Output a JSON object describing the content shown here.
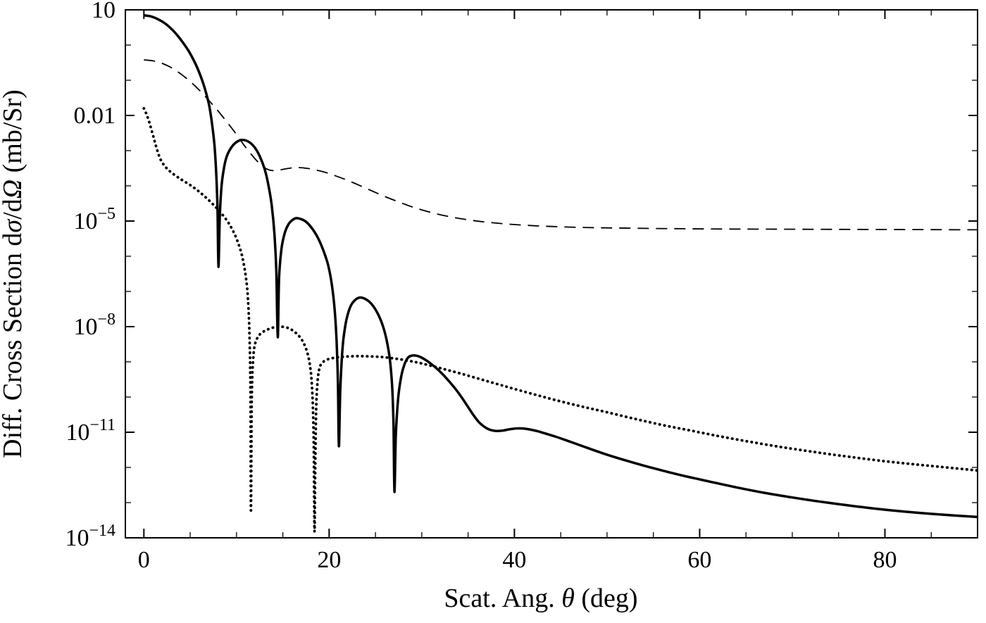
{
  "figure": {
    "background": "#ffffff",
    "frame_color": "#000000"
  },
  "chart_data": {
    "type": "line",
    "title": "",
    "xlabel": "Scat. Ang. θ (deg)",
    "ylabel": "Diff. Cross Section dσ/dΩ (mb/Sr)",
    "x_range": [
      -2,
      90
    ],
    "y_scale": "log10",
    "y_range_exp": [
      -14,
      1
    ],
    "grid": false,
    "legend": "none",
    "x_ticks": {
      "major": [
        0,
        20,
        40,
        60,
        80
      ],
      "labels": [
        "0",
        "20",
        "40",
        "60",
        "80"
      ],
      "minor": [
        5,
        10,
        15,
        25,
        30,
        35,
        45,
        50,
        55,
        65,
        70,
        75,
        85
      ]
    },
    "y_ticks": {
      "major_exp": [
        1,
        -2,
        -5,
        -8,
        -11,
        -14
      ],
      "labels": [
        "10",
        "0.01",
        "10^−5",
        "10^−8",
        "10^−11",
        "10^−14"
      ],
      "minor_exp": [
        0,
        -1,
        -3,
        -4,
        -6,
        -7,
        -9,
        -10,
        -12,
        -13
      ]
    },
    "series": [
      {
        "name": "solid-curve",
        "line_style": "solid",
        "color": "#000000",
        "points": [
          [
            0,
            7
          ],
          [
            0.8,
            6.5
          ],
          [
            1.6,
            5.3
          ],
          [
            2.4,
            3.9
          ],
          [
            3.2,
            2.5
          ],
          [
            4,
            1.4
          ],
          [
            4.8,
            0.7
          ],
          [
            5.5,
            0.32
          ],
          [
            6,
            0.16
          ],
          [
            6.5,
            0.068
          ],
          [
            7,
            0.022
          ],
          [
            7.3,
            0.0075
          ],
          [
            7.6,
            0.0016
          ],
          [
            7.8,
            0.00025
          ],
          [
            7.95,
            2e-05
          ],
          [
            8.05,
            5e-07
          ],
          [
            8.2,
            1.5e-05
          ],
          [
            8.4,
            0.00011
          ],
          [
            8.7,
            0.00038
          ],
          [
            9,
            0.00075
          ],
          [
            9.5,
            0.0013
          ],
          [
            10,
            0.00175
          ],
          [
            10.5,
            0.002
          ],
          [
            11,
            0.00195
          ],
          [
            11.5,
            0.00165
          ],
          [
            12,
            0.0012
          ],
          [
            12.5,
            0.0007
          ],
          [
            13,
            0.00032
          ],
          [
            13.4,
            0.00012
          ],
          [
            13.8,
            2.8e-05
          ],
          [
            14.1,
            4e-06
          ],
          [
            14.3,
            3.5e-07
          ],
          [
            14.45,
            5e-09
          ],
          [
            14.6,
            2.5e-07
          ],
          [
            14.85,
            1.6e-06
          ],
          [
            15.2,
            4.5e-06
          ],
          [
            15.6,
            8e-06
          ],
          [
            16,
            1.05e-05
          ],
          [
            16.4,
            1.2e-05
          ],
          [
            16.9,
            1.15e-05
          ],
          [
            17.4,
            1e-05
          ],
          [
            17.9,
            7.5e-06
          ],
          [
            18.4,
            5e-06
          ],
          [
            18.9,
            2.9e-06
          ],
          [
            19.4,
            1.4e-06
          ],
          [
            19.9,
            5.5e-07
          ],
          [
            20.3,
            1.5e-07
          ],
          [
            20.6,
            3e-08
          ],
          [
            20.8,
            4e-09
          ],
          [
            20.95,
            2.5e-10
          ],
          [
            21.05,
            4e-12
          ],
          [
            21.2,
            1.5e-10
          ],
          [
            21.45,
            2.5e-09
          ],
          [
            21.7,
            9e-09
          ],
          [
            22,
            2.2e-08
          ],
          [
            22.4,
            4.2e-08
          ],
          [
            22.9,
            6e-08
          ],
          [
            23.3,
            6.7e-08
          ],
          [
            23.8,
            6.3e-08
          ],
          [
            24.3,
            5.2e-08
          ],
          [
            24.8,
            3.7e-08
          ],
          [
            25.3,
            2.2e-08
          ],
          [
            25.8,
            1.05e-08
          ],
          [
            26.2,
            4.2e-09
          ],
          [
            26.55,
            1.2e-09
          ],
          [
            26.8,
            2e-10
          ],
          [
            26.95,
            1.5e-11
          ],
          [
            27.05,
            2e-13
          ],
          [
            27.2,
            8e-12
          ],
          [
            27.45,
            9e-11
          ],
          [
            27.75,
            3.5e-10
          ],
          [
            28.1,
            8e-10
          ],
          [
            28.5,
            1.3e-09
          ],
          [
            28.9,
            1.5e-09
          ],
          [
            29.4,
            1.5e-09
          ],
          [
            29.9,
            1.35e-09
          ],
          [
            30.6,
            1.05e-09
          ],
          [
            31.4,
            7.2e-10
          ],
          [
            32.2,
            4.6e-10
          ],
          [
            33,
            2.7e-10
          ],
          [
            33.8,
            1.5e-10
          ],
          [
            34.6,
            7.5e-11
          ],
          [
            35.4,
            3.6e-11
          ],
          [
            36.2,
            1.9e-11
          ],
          [
            37,
            1.3e-11
          ],
          [
            37.8,
            1.1e-11
          ],
          [
            38.6,
            1.1e-11
          ],
          [
            39.4,
            1.2e-11
          ],
          [
            40.2,
            1.28e-11
          ],
          [
            41,
            1.27e-11
          ],
          [
            42,
            1.15e-11
          ],
          [
            43,
            9.8e-12
          ],
          [
            44.5,
            7.4e-12
          ],
          [
            46,
            5.4e-12
          ],
          [
            48,
            3.5e-12
          ],
          [
            50,
            2.3e-12
          ],
          [
            52.5,
            1.45e-12
          ],
          [
            55,
            9.5e-13
          ],
          [
            58,
            6e-13
          ],
          [
            61,
            4e-13
          ],
          [
            64,
            2.7e-13
          ],
          [
            67,
            1.9e-13
          ],
          [
            70,
            1.4e-13
          ],
          [
            74,
            9.8e-14
          ],
          [
            78,
            7.2e-14
          ],
          [
            82,
            5.6e-14
          ],
          [
            86,
            4.6e-14
          ],
          [
            90,
            3.9e-14
          ]
        ]
      },
      {
        "name": "dashed-curve",
        "line_style": "dashed",
        "color": "#000000",
        "points": [
          [
            0,
            0.38
          ],
          [
            1,
            0.355
          ],
          [
            2,
            0.3
          ],
          [
            3,
            0.225
          ],
          [
            4,
            0.15
          ],
          [
            5,
            0.092
          ],
          [
            6,
            0.052
          ],
          [
            7,
            0.027
          ],
          [
            8,
            0.0135
          ],
          [
            9,
            0.0063
          ],
          [
            10,
            0.0029
          ],
          [
            10.8,
            0.00145
          ],
          [
            11.6,
            0.00078
          ],
          [
            12.3,
            0.00048
          ],
          [
            13,
            0.00033
          ],
          [
            13.7,
            0.000275
          ],
          [
            14.4,
            0.000275
          ],
          [
            15.2,
            0.0003
          ],
          [
            16,
            0.000325
          ],
          [
            16.8,
            0.00033
          ],
          [
            17.6,
            0.000315
          ],
          [
            18.5,
            0.000285
          ],
          [
            19.5,
            0.000245
          ],
          [
            20.5,
            0.0002
          ],
          [
            21.8,
            0.00015
          ],
          [
            23.2,
            0.000105
          ],
          [
            24.6,
            7.2e-05
          ],
          [
            26,
            5e-05
          ],
          [
            27.5,
            3.5e-05
          ],
          [
            29,
            2.5e-05
          ],
          [
            31,
            1.75e-05
          ],
          [
            33,
            1.33e-05
          ],
          [
            35,
            1.08e-05
          ],
          [
            37,
            9.3e-06
          ],
          [
            39,
            8.3e-06
          ],
          [
            41.5,
            7.5e-06
          ],
          [
            44,
            7e-06
          ],
          [
            47,
            6.6e-06
          ],
          [
            50,
            6.4e-06
          ],
          [
            54,
            6.2e-06
          ],
          [
            58,
            6.05e-06
          ],
          [
            62,
            5.95e-06
          ],
          [
            66,
            5.9e-06
          ],
          [
            70,
            5.85e-06
          ],
          [
            75,
            5.8e-06
          ],
          [
            80,
            5.75e-06
          ],
          [
            85,
            5.7e-06
          ],
          [
            90,
            5.65e-06
          ]
        ]
      },
      {
        "name": "dotted-curve",
        "line_style": "dotted",
        "color": "#000000",
        "points": [
          [
            0,
            0.016
          ],
          [
            0.3,
            0.0105
          ],
          [
            0.6,
            0.0062
          ],
          [
            0.9,
            0.0033
          ],
          [
            1.2,
            0.0017
          ],
          [
            1.5,
            0.00092
          ],
          [
            1.8,
            0.00056
          ],
          [
            2.2,
            0.00038
          ],
          [
            2.6,
            0.00029
          ],
          [
            3,
            0.000235
          ],
          [
            3.6,
            0.00018
          ],
          [
            4.2,
            0.000142
          ],
          [
            5,
            0.000105
          ],
          [
            5.8,
            7.4e-05
          ],
          [
            6.6,
            4.9e-05
          ],
          [
            7.4,
            3.1e-05
          ],
          [
            8.2,
            1.85e-05
          ],
          [
            9,
            1e-05
          ],
          [
            9.6,
            5.4e-06
          ],
          [
            10.1,
            2.7e-06
          ],
          [
            10.55,
            1.15e-06
          ],
          [
            10.9,
            4e-07
          ],
          [
            11.15,
            1.2e-07
          ],
          [
            11.3,
            3e-08
          ],
          [
            11.4,
            6e-09
          ],
          [
            11.47,
            8e-10
          ],
          [
            11.52,
            5e-11
          ],
          [
            11.56,
            6e-14
          ],
          [
            11.65,
            1e-10
          ],
          [
            11.8,
            1.2e-09
          ],
          [
            12,
            3.2e-09
          ],
          [
            12.4,
            5.5e-09
          ],
          [
            12.9,
            7.2e-09
          ],
          [
            13.5,
            8.6e-09
          ],
          [
            14.1,
            9.6e-09
          ],
          [
            14.7,
            1e-08
          ],
          [
            15.3,
            9.6e-09
          ],
          [
            15.8,
            8.6e-09
          ],
          [
            16.3,
            7e-09
          ],
          [
            16.8,
            5.2e-09
          ],
          [
            17.2,
            3.6e-09
          ],
          [
            17.6,
            2e-09
          ],
          [
            17.9,
            9e-10
          ],
          [
            18.1,
            3e-10
          ],
          [
            18.25,
            5e-11
          ],
          [
            18.35,
            2.5e-12
          ],
          [
            18.42,
            1.5e-14
          ],
          [
            18.5,
            1e-12
          ],
          [
            18.6,
            4.5e-11
          ],
          [
            18.75,
            2.8e-10
          ],
          [
            18.95,
            6.5e-10
          ],
          [
            19.2,
            9e-10
          ],
          [
            19.6,
            1.1e-09
          ],
          [
            20.2,
            1.25e-09
          ],
          [
            21,
            1.35e-09
          ],
          [
            22,
            1.42e-09
          ],
          [
            23,
            1.45e-09
          ],
          [
            24,
            1.44e-09
          ],
          [
            25.5,
            1.38e-09
          ],
          [
            27,
            1.25e-09
          ],
          [
            28.5,
            1.08e-09
          ],
          [
            30,
            9e-10
          ],
          [
            32,
            6.6e-10
          ],
          [
            34,
            4.8e-10
          ],
          [
            36,
            3.4e-10
          ],
          [
            38,
            2.4e-10
          ],
          [
            40,
            1.7e-10
          ],
          [
            42.5,
            1.12e-10
          ],
          [
            45,
            7.5e-11
          ],
          [
            47.5,
            5.2e-11
          ],
          [
            50,
            3.7e-11
          ],
          [
            53,
            2.4e-11
          ],
          [
            56,
            1.6e-11
          ],
          [
            59,
            1.12e-11
          ],
          [
            62,
            7.8e-12
          ],
          [
            65,
            5.6e-12
          ],
          [
            68,
            4.1e-12
          ],
          [
            71,
            3.1e-12
          ],
          [
            75,
            2.2e-12
          ],
          [
            80,
            1.5e-12
          ],
          [
            85,
            1.1e-12
          ],
          [
            90,
            8.2e-13
          ]
        ]
      }
    ]
  }
}
